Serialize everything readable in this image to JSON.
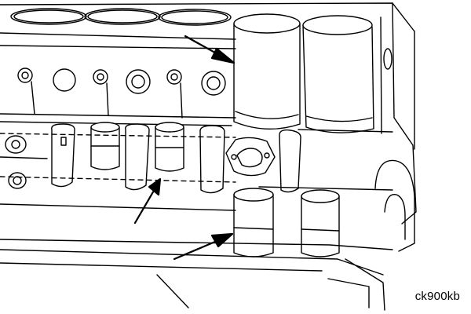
{
  "figure": {
    "code": "ck900kb",
    "ink_color": "#000000",
    "paper_color": "#ffffff"
  }
}
